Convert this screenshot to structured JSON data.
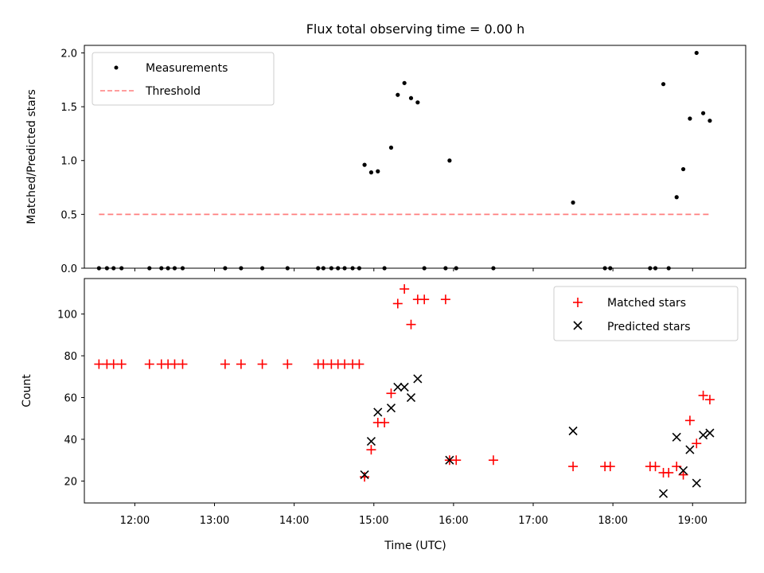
{
  "chart_data": [
    {
      "type": "scatter",
      "title": "Flux total observing time = 0.00 h",
      "xlabel": "",
      "ylabel": "Matched/Predicted stars",
      "xlim": [
        "11:22",
        "19:40"
      ],
      "ylim": [
        0,
        2.07
      ],
      "yticks": [
        "0.0",
        "0.5",
        "1.0",
        "1.5",
        "2.0"
      ],
      "legend_position": "top-left",
      "series": [
        {
          "name": "Measurements",
          "marker": "dot",
          "color": "#000000",
          "points": [
            [
              "11:33",
              0
            ],
            [
              "11:39",
              0
            ],
            [
              "11:44",
              0
            ],
            [
              "11:50",
              0
            ],
            [
              "12:11",
              0
            ],
            [
              "12:20",
              0
            ],
            [
              "12:25",
              0
            ],
            [
              "12:30",
              0
            ],
            [
              "12:36",
              0
            ],
            [
              "13:08",
              0
            ],
            [
              "13:20",
              0
            ],
            [
              "13:36",
              0
            ],
            [
              "13:55",
              0
            ],
            [
              "14:18",
              0
            ],
            [
              "14:22",
              0
            ],
            [
              "14:28",
              0
            ],
            [
              "14:33",
              0
            ],
            [
              "14:38",
              0
            ],
            [
              "14:44",
              0
            ],
            [
              "14:49",
              0
            ],
            [
              "14:53",
              0.96
            ],
            [
              "14:58",
              0.89
            ],
            [
              "15:03",
              0.9
            ],
            [
              "15:08",
              0
            ],
            [
              "15:13",
              1.12
            ],
            [
              "15:18",
              1.61
            ],
            [
              "15:23",
              1.72
            ],
            [
              "15:28",
              1.58
            ],
            [
              "15:33",
              1.54
            ],
            [
              "15:38",
              0
            ],
            [
              "15:54",
              0
            ],
            [
              "15:57",
              1.0
            ],
            [
              "16:02",
              0
            ],
            [
              "16:30",
              0
            ],
            [
              "17:30",
              0.61
            ],
            [
              "17:54",
              0
            ],
            [
              "17:58",
              0
            ],
            [
              "18:28",
              0
            ],
            [
              "18:32",
              0
            ],
            [
              "18:38",
              1.71
            ],
            [
              "18:42",
              0
            ],
            [
              "18:48",
              0.66
            ],
            [
              "18:53",
              0.92
            ],
            [
              "18:58",
              1.39
            ],
            [
              "19:03",
              2.0
            ],
            [
              "19:08",
              1.44
            ],
            [
              "19:13",
              1.37
            ]
          ]
        },
        {
          "name": "Threshold",
          "type": "line",
          "style": "dashed",
          "color": "#ff7f7f",
          "points": [
            [
              "11:33",
              0.5
            ],
            [
              "19:13",
              0.5
            ]
          ]
        }
      ]
    },
    {
      "type": "scatter",
      "title": "",
      "xlabel": "Time (UTC)",
      "ylabel": "Count",
      "xlim": [
        "11:22",
        "19:40"
      ],
      "ylim": [
        9.5,
        117
      ],
      "yticks": [
        "20",
        "40",
        "60",
        "80",
        "100"
      ],
      "xticks": [
        "12:00",
        "13:00",
        "14:00",
        "15:00",
        "16:00",
        "17:00",
        "18:00",
        "19:00"
      ],
      "legend_position": "top-right",
      "series": [
        {
          "name": "Matched stars",
          "marker": "plus",
          "color": "#ff0000",
          "points": [
            [
              "11:33",
              76
            ],
            [
              "11:39",
              76
            ],
            [
              "11:44",
              76
            ],
            [
              "11:50",
              76
            ],
            [
              "12:11",
              76
            ],
            [
              "12:20",
              76
            ],
            [
              "12:25",
              76
            ],
            [
              "12:30",
              76
            ],
            [
              "12:36",
              76
            ],
            [
              "13:08",
              76
            ],
            [
              "13:20",
              76
            ],
            [
              "13:36",
              76
            ],
            [
              "13:55",
              76
            ],
            [
              "14:18",
              76
            ],
            [
              "14:22",
              76
            ],
            [
              "14:28",
              76
            ],
            [
              "14:33",
              76
            ],
            [
              "14:38",
              76
            ],
            [
              "14:44",
              76
            ],
            [
              "14:49",
              76
            ],
            [
              "14:53",
              22
            ],
            [
              "14:58",
              35
            ],
            [
              "15:03",
              48
            ],
            [
              "15:08",
              48
            ],
            [
              "15:13",
              62
            ],
            [
              "15:18",
              105
            ],
            [
              "15:23",
              112
            ],
            [
              "15:28",
              95
            ],
            [
              "15:33",
              107
            ],
            [
              "15:38",
              107
            ],
            [
              "15:54",
              107
            ],
            [
              "15:57",
              30
            ],
            [
              "16:02",
              30
            ],
            [
              "16:30",
              30
            ],
            [
              "17:30",
              27
            ],
            [
              "17:54",
              27
            ],
            [
              "17:58",
              27
            ],
            [
              "18:28",
              27
            ],
            [
              "18:32",
              27
            ],
            [
              "18:38",
              24
            ],
            [
              "18:42",
              24
            ],
            [
              "18:48",
              27
            ],
            [
              "18:53",
              23
            ],
            [
              "18:58",
              49
            ],
            [
              "19:03",
              38
            ],
            [
              "19:08",
              61
            ],
            [
              "19:13",
              59
            ]
          ]
        },
        {
          "name": "Predicted stars",
          "marker": "x",
          "color": "#000000",
          "points": [
            [
              "14:53",
              23
            ],
            [
              "14:58",
              39
            ],
            [
              "15:03",
              53
            ],
            [
              "15:13",
              55
            ],
            [
              "15:18",
              65
            ],
            [
              "15:23",
              65
            ],
            [
              "15:28",
              60
            ],
            [
              "15:33",
              69
            ],
            [
              "15:57",
              30
            ],
            [
              "17:30",
              44
            ],
            [
              "18:38",
              14
            ],
            [
              "18:48",
              41
            ],
            [
              "18:53",
              25
            ],
            [
              "18:58",
              35
            ],
            [
              "19:03",
              19
            ],
            [
              "19:08",
              42
            ],
            [
              "19:13",
              43
            ]
          ]
        }
      ]
    }
  ]
}
